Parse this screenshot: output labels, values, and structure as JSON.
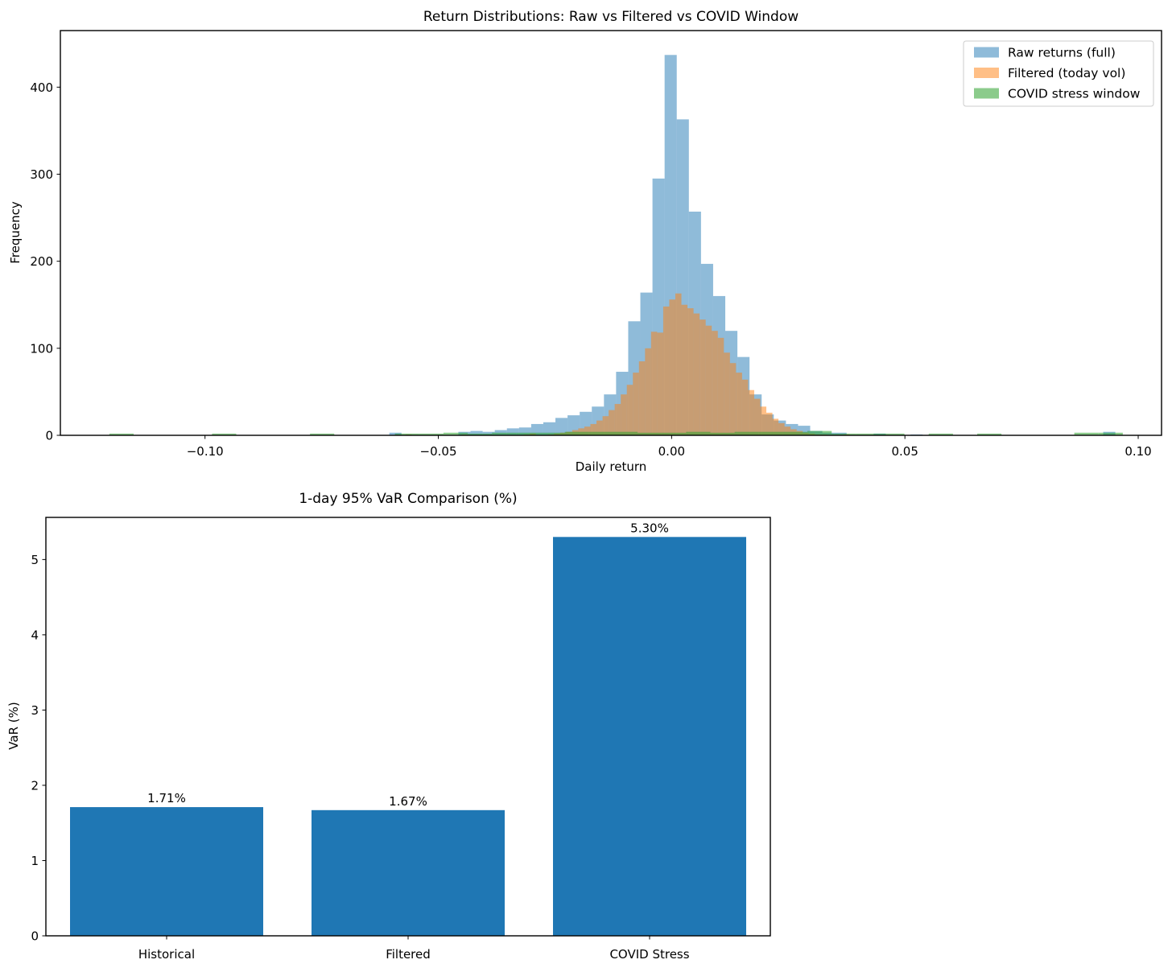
{
  "chart_data": [
    {
      "type": "histogram",
      "title": "Return Distributions: Raw vs Filtered vs COVID Window",
      "xlabel": "Daily return",
      "ylabel": "Frequency",
      "xlim": [
        -0.131,
        0.105
      ],
      "ylim": [
        0,
        465
      ],
      "grid": false,
      "legend_position": "upper right",
      "xticks": [
        -0.1,
        -0.05,
        0.0,
        0.05,
        0.1
      ],
      "xtick_labels": [
        "−0.10",
        "−0.05",
        "0.00",
        "0.05",
        "0.10"
      ],
      "yticks": [
        0,
        100,
        200,
        300,
        400
      ],
      "ytick_labels": [
        "0",
        "100",
        "200",
        "300",
        "400"
      ],
      "series": [
        {
          "name": "Raw returns (full)",
          "color": "#1f77b4",
          "alpha": 0.5,
          "bin_width": 0.0026,
          "clusters": [
            {
              "start": -0.0605,
              "counts": [
                3
              ]
            },
            {
              "start": -0.0457,
              "counts": [
                4,
                5,
                4,
                6,
                8,
                9,
                13,
                15,
                20,
                23,
                27,
                33,
                47,
                73,
                131,
                164,
                295,
                437,
                363,
                257,
                197,
                160,
                120,
                90,
                47,
                24,
                17,
                13,
                11,
                5,
                3,
                3
              ]
            },
            {
              "start": 0.0433,
              "counts": [
                2
              ]
            },
            {
              "start": 0.0512,
              "counts": [
                1
              ]
            },
            {
              "start": 0.0925,
              "counts": [
                4
              ]
            }
          ]
        },
        {
          "name": "Filtered (today vol)",
          "color": "#ff7f0e",
          "alpha": 0.5,
          "bin_width": 0.0013,
          "clusters": [
            {
              "start": -0.057,
              "counts": [
                1
              ]
            },
            {
              "start": -0.045,
              "counts": [
                1
              ]
            },
            {
              "start": -0.0317,
              "counts": [
                1,
                2
              ]
            },
            {
              "start": -0.0265,
              "counts": [
                1,
                2,
                3,
                4,
                6,
                8,
                10,
                13,
                17,
                22,
                29,
                36,
                47,
                58,
                72,
                85,
                100,
                119,
                118,
                148,
                156,
                163,
                150,
                146,
                140,
                133,
                126,
                120,
                112,
                95,
                83,
                72,
                64,
                52,
                42,
                33,
                26,
                19,
                14,
                10,
                7,
                5,
                3,
                2,
                1,
                1
              ]
            },
            {
              "start": 0.0369,
              "counts": [
                1
              ]
            }
          ]
        },
        {
          "name": "COVID stress window",
          "color": "#2ca02c",
          "alpha": 0.55,
          "bin_width": 0.0052,
          "clusters": [
            {
              "start": -0.1205,
              "counts": [
                2
              ]
            },
            {
              "start": -0.0985,
              "counts": [
                2
              ]
            },
            {
              "start": -0.0775,
              "counts": [
                2
              ]
            },
            {
              "start": -0.0593,
              "counts": [
                2,
                2,
                3,
                2,
                3,
                3,
                3,
                4,
                4,
                4,
                3,
                3,
                4,
                3,
                4,
                4,
                4,
                5,
                2,
                2,
                2
              ]
            },
            {
              "start": 0.0551,
              "counts": [
                2
              ]
            },
            {
              "start": 0.0655,
              "counts": [
                2
              ]
            },
            {
              "start": 0.0863,
              "counts": [
                3,
                3
              ]
            }
          ]
        }
      ]
    },
    {
      "type": "bar",
      "title": "1-day 95% VaR Comparison (%)",
      "xlabel": "",
      "ylabel": "VaR (%)",
      "categories": [
        "Historical",
        "Filtered",
        "COVID Stress"
      ],
      "values": [
        1.71,
        1.67,
        5.3
      ],
      "bar_labels": [
        "1.71%",
        "1.67%",
        "5.30%"
      ],
      "bar_color": "#1f77b4",
      "ylim": [
        0,
        5.56
      ],
      "grid": false,
      "yticks": [
        0,
        1,
        2,
        3,
        4,
        5
      ],
      "ytick_labels": [
        "0",
        "1",
        "2",
        "3",
        "4",
        "5"
      ]
    }
  ]
}
